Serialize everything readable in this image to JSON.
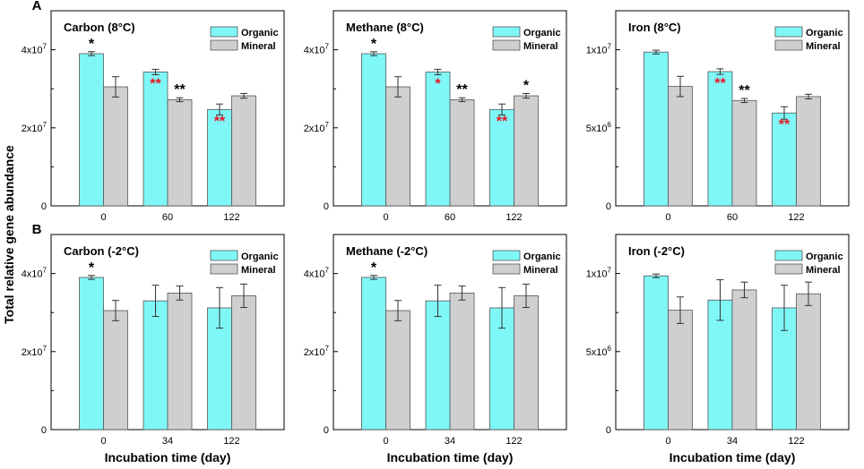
{
  "figure": {
    "row_labels": [
      "A",
      "B"
    ],
    "ylabel": "Total relative gene abundance",
    "xlabel": "Incubation time (day)",
    "legend": [
      "Organic",
      "Mineral"
    ],
    "colors": {
      "organic": "#7ff7f7",
      "mineral": "#cfcfcf",
      "sig_black": "#000000",
      "sig_red": "#e8141e"
    }
  },
  "chart_data": [
    {
      "type": "bar",
      "row": 0,
      "col": 0,
      "title": "Carbon (8°C)",
      "categories": [
        "0",
        "60",
        "122"
      ],
      "ylim": [
        0,
        50000000
      ],
      "yticks": [
        {
          "v": 0,
          "m": "0",
          "e": ""
        },
        {
          "v": 20000000,
          "m": "2x10",
          "e": "7"
        },
        {
          "v": 40000000,
          "m": "4x10",
          "e": "7"
        }
      ],
      "series": [
        {
          "name": "Organic",
          "values": [
            39000000,
            34300000,
            24700000
          ],
          "errors": [
            500000,
            700000,
            1400000
          ]
        },
        {
          "name": "Mineral",
          "values": [
            30500000,
            27200000,
            28200000
          ],
          "errors": [
            2600000,
            500000,
            600000
          ]
        }
      ],
      "sig": [
        {
          "cat": 0,
          "series": 0,
          "text": "*",
          "color": "black",
          "pos": "above"
        },
        {
          "cat": 1,
          "series": 1,
          "text": "**",
          "color": "black",
          "pos": "above"
        },
        {
          "cat": 1,
          "series": 0,
          "text": "**",
          "color": "red",
          "pos": "inside"
        },
        {
          "cat": 2,
          "series": 0,
          "text": "**",
          "color": "red",
          "pos": "inside"
        }
      ]
    },
    {
      "type": "bar",
      "row": 0,
      "col": 1,
      "title": "Methane (8°C)",
      "categories": [
        "0",
        "60",
        "122"
      ],
      "ylim": [
        0,
        50000000
      ],
      "yticks": [
        {
          "v": 0,
          "m": "0",
          "e": ""
        },
        {
          "v": 20000000,
          "m": "2x10",
          "e": "7"
        },
        {
          "v": 40000000,
          "m": "4x10",
          "e": "7"
        }
      ],
      "series": [
        {
          "name": "Organic",
          "values": [
            39000000,
            34300000,
            24700000
          ],
          "errors": [
            500000,
            700000,
            1400000
          ]
        },
        {
          "name": "Mineral",
          "values": [
            30500000,
            27200000,
            28200000
          ],
          "errors": [
            2600000,
            500000,
            600000
          ]
        }
      ],
      "sig": [
        {
          "cat": 0,
          "series": 0,
          "text": "*",
          "color": "black",
          "pos": "above"
        },
        {
          "cat": 1,
          "series": 1,
          "text": "**",
          "color": "black",
          "pos": "above"
        },
        {
          "cat": 1,
          "series": 0,
          "text": "*",
          "color": "red",
          "pos": "inside"
        },
        {
          "cat": 2,
          "series": 0,
          "text": "**",
          "color": "red",
          "pos": "inside"
        },
        {
          "cat": 2,
          "series": 1,
          "text": "*",
          "color": "black",
          "pos": "above"
        }
      ]
    },
    {
      "type": "bar",
      "row": 0,
      "col": 2,
      "title": "Iron (8°C)",
      "categories": [
        "0",
        "60",
        "122"
      ],
      "ylim": [
        0,
        12500000
      ],
      "yticks": [
        {
          "v": 0,
          "m": "0",
          "e": ""
        },
        {
          "v": 5000000,
          "m": "5x10",
          "e": "6"
        },
        {
          "v": 10000000,
          "m": "1x10",
          "e": "7"
        }
      ],
      "series": [
        {
          "name": "Organic",
          "values": [
            9850000,
            8600000,
            5950000
          ],
          "errors": [
            120000,
            180000,
            400000
          ]
        },
        {
          "name": "Mineral",
          "values": [
            7650000,
            6750000,
            7000000
          ],
          "errors": [
            650000,
            130000,
            150000
          ]
        }
      ],
      "sig": [
        {
          "cat": 1,
          "series": 1,
          "text": "**",
          "color": "black",
          "pos": "above"
        },
        {
          "cat": 1,
          "series": 0,
          "text": "**",
          "color": "red",
          "pos": "inside"
        },
        {
          "cat": 2,
          "series": 0,
          "text": "**",
          "color": "red",
          "pos": "inside"
        }
      ]
    },
    {
      "type": "bar",
      "row": 1,
      "col": 0,
      "title": "Carbon (-2°C)",
      "categories": [
        "0",
        "34",
        "122"
      ],
      "ylim": [
        0,
        50000000
      ],
      "yticks": [
        {
          "v": 0,
          "m": "0",
          "e": ""
        },
        {
          "v": 20000000,
          "m": "2x10",
          "e": "7"
        },
        {
          "v": 40000000,
          "m": "4x10",
          "e": "7"
        }
      ],
      "series": [
        {
          "name": "Organic",
          "values": [
            39000000,
            33000000,
            31200000
          ],
          "errors": [
            500000,
            4000000,
            5200000
          ]
        },
        {
          "name": "Mineral",
          "values": [
            30500000,
            35000000,
            34300000
          ],
          "errors": [
            2600000,
            1800000,
            3000000
          ]
        }
      ],
      "sig": [
        {
          "cat": 0,
          "series": 0,
          "text": "*",
          "color": "black",
          "pos": "above"
        }
      ]
    },
    {
      "type": "bar",
      "row": 1,
      "col": 1,
      "title": "Methane (-2°C)",
      "categories": [
        "0",
        "34",
        "122"
      ],
      "ylim": [
        0,
        50000000
      ],
      "yticks": [
        {
          "v": 0,
          "m": "0",
          "e": ""
        },
        {
          "v": 20000000,
          "m": "2x10",
          "e": "7"
        },
        {
          "v": 40000000,
          "m": "4x10",
          "e": "7"
        }
      ],
      "series": [
        {
          "name": "Organic",
          "values": [
            39000000,
            33000000,
            31200000
          ],
          "errors": [
            500000,
            4000000,
            5200000
          ]
        },
        {
          "name": "Mineral",
          "values": [
            30500000,
            35000000,
            34300000
          ],
          "errors": [
            2600000,
            1800000,
            3000000
          ]
        }
      ],
      "sig": [
        {
          "cat": 0,
          "series": 0,
          "text": "*",
          "color": "black",
          "pos": "above"
        }
      ]
    },
    {
      "type": "bar",
      "row": 1,
      "col": 2,
      "title": "Iron (-2°C)",
      "categories": [
        "0",
        "34",
        "122"
      ],
      "ylim": [
        0,
        12500000
      ],
      "yticks": [
        {
          "v": 0,
          "m": "0",
          "e": ""
        },
        {
          "v": 5000000,
          "m": "5x10",
          "e": "6"
        },
        {
          "v": 10000000,
          "m": "1x10",
          "e": "7"
        }
      ],
      "series": [
        {
          "name": "Organic",
          "values": [
            9850000,
            8300000,
            7800000
          ],
          "errors": [
            120000,
            1300000,
            1450000
          ]
        },
        {
          "name": "Mineral",
          "values": [
            7650000,
            8950000,
            8700000
          ],
          "errors": [
            850000,
            500000,
            750000
          ]
        }
      ],
      "sig": []
    }
  ]
}
